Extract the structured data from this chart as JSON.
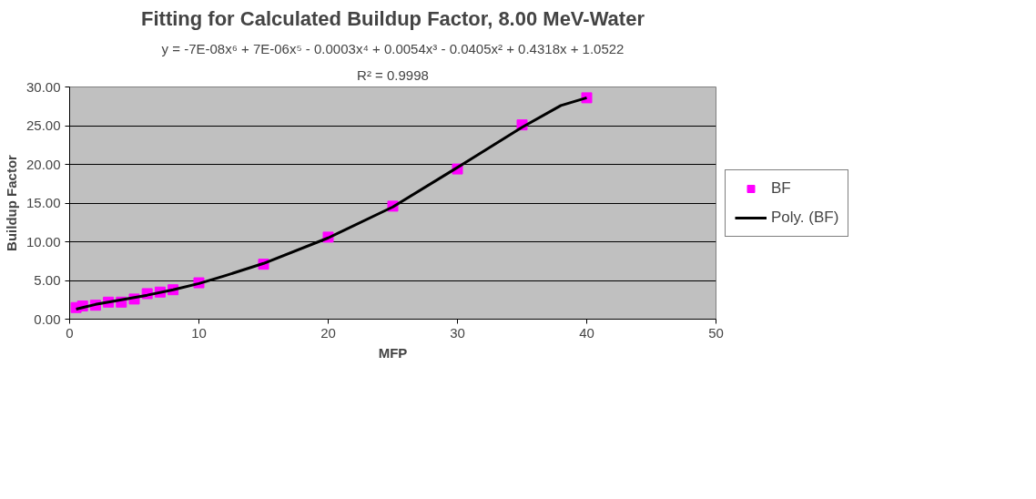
{
  "chart_data": {
    "type": "scatter",
    "title": "Fitting for Calculated Buildup Factor, 8.00 MeV-Water",
    "annotations": [
      "y = -7E-08x⁶ + 7E-06x⁵ - 0.0003x⁴ + 0.0054x³ - 0.0405x² + 0.4318x + 1.0522",
      "R² = 0.9998"
    ],
    "xlabel": "MFP",
    "ylabel": "Buildup Factor",
    "xlim": [
      0,
      50
    ],
    "xticks": [
      0,
      10,
      20,
      30,
      40,
      50
    ],
    "ylim": [
      0,
      30
    ],
    "yticks": [
      {
        "value": 0,
        "label": "0.00"
      },
      {
        "value": 5,
        "label": "5.00"
      },
      {
        "value": 10,
        "label": "10.00"
      },
      {
        "value": 15,
        "label": "15.00"
      },
      {
        "value": 20,
        "label": "20.00"
      },
      {
        "value": 25,
        "label": "25.00"
      },
      {
        "value": 30,
        "label": "30.00"
      }
    ],
    "grid": "y",
    "legend": "right",
    "series": [
      {
        "name": "BF",
        "color": "#ff00ff",
        "marker": "square",
        "x": [
          0.5,
          1,
          2,
          3,
          4,
          5,
          6,
          7,
          8,
          10,
          15,
          20,
          25,
          30,
          35,
          40
        ],
        "values": [
          1.5,
          1.7,
          1.8,
          2.2,
          2.2,
          2.6,
          3.3,
          3.5,
          3.8,
          4.7,
          7.1,
          10.6,
          14.6,
          19.4,
          25.1,
          28.6
        ]
      },
      {
        "name": "Poly. (BF)",
        "color": "#000000",
        "type": "line",
        "marker": "none",
        "x": [
          0.5,
          1,
          2,
          4,
          6,
          8,
          10,
          12,
          15,
          20,
          25,
          30,
          35,
          38,
          40
        ],
        "values": [
          1.3,
          1.5,
          1.9,
          2.5,
          3.1,
          3.8,
          4.6,
          5.6,
          7.2,
          10.5,
          14.5,
          19.6,
          24.8,
          27.6,
          28.6
        ]
      }
    ]
  }
}
